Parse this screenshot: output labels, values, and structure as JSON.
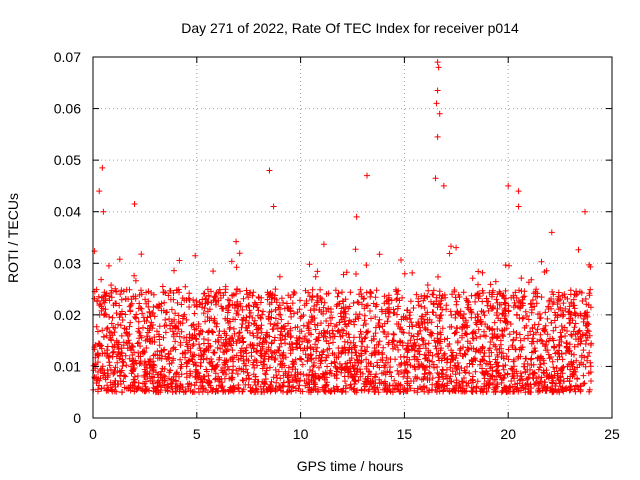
{
  "chart_data": {
    "type": "scatter",
    "title": "Day 271 of 2022, Rate Of TEC Index for receiver p014",
    "xlabel": "GPS time / hours",
    "ylabel": "ROTI / TECUs",
    "xlim": [
      0,
      25
    ],
    "ylim": [
      0,
      0.07
    ],
    "xticks": [
      0,
      5,
      10,
      15,
      20,
      25
    ],
    "xtick_labels": [
      "0",
      "5",
      "10",
      "15",
      "20",
      "25"
    ],
    "yticks": [
      0,
      0.01,
      0.02,
      0.03,
      0.04,
      0.05,
      0.06,
      0.07
    ],
    "ytick_labels": [
      "0",
      "0.01",
      "0.02",
      "0.03",
      "0.04",
      "0.05",
      "0.06",
      "0.07"
    ],
    "grid": true,
    "marker": "+",
    "color": "#ff0000",
    "series": [
      {
        "name": "ROTI",
        "x_range": [
          0,
          24
        ],
        "typical_range": [
          0.005,
          0.025
        ],
        "notable_points": [
          {
            "x": 0.45,
            "y": 0.0485
          },
          {
            "x": 0.3,
            "y": 0.044
          },
          {
            "x": 0.5,
            "y": 0.04
          },
          {
            "x": 2.0,
            "y": 0.0415
          },
          {
            "x": 8.5,
            "y": 0.048
          },
          {
            "x": 8.7,
            "y": 0.041
          },
          {
            "x": 13.2,
            "y": 0.047
          },
          {
            "x": 12.7,
            "y": 0.039
          },
          {
            "x": 16.5,
            "y": 0.0465
          },
          {
            "x": 16.6,
            "y": 0.069
          },
          {
            "x": 16.65,
            "y": 0.068
          },
          {
            "x": 16.6,
            "y": 0.0635
          },
          {
            "x": 16.55,
            "y": 0.061
          },
          {
            "x": 16.7,
            "y": 0.059
          },
          {
            "x": 16.6,
            "y": 0.0545
          },
          {
            "x": 16.9,
            "y": 0.045
          },
          {
            "x": 20.0,
            "y": 0.045
          },
          {
            "x": 20.5,
            "y": 0.044
          },
          {
            "x": 20.5,
            "y": 0.041
          },
          {
            "x": 22.1,
            "y": 0.036
          },
          {
            "x": 23.7,
            "y": 0.04
          }
        ]
      }
    ]
  }
}
